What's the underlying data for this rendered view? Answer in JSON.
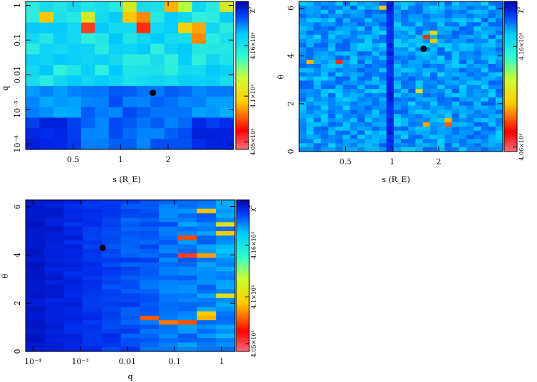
{
  "chart_data": [
    {
      "type": "heatmap",
      "id": "p1",
      "xlabel": "s (R_E)",
      "ylabel": "q",
      "x_scale": "log",
      "y_scale": "log",
      "xlim": [
        0.25,
        5.2
      ],
      "ylim": [
        7e-05,
        1.3
      ],
      "x_ticks": [
        {
          "v": 0.5,
          "label": "0.5"
        },
        {
          "v": 1,
          "label": "1"
        },
        {
          "v": 2,
          "label": "2"
        }
      ],
      "y_ticks": [
        {
          "v": 1,
          "label": "1"
        },
        {
          "v": 0.1,
          "label": "0.1"
        },
        {
          "v": 0.01,
          "label": "0.01"
        },
        {
          "v": 0.001,
          "label": "10⁻³"
        },
        {
          "v": 0.0001,
          "label": "10⁻⁴"
        }
      ],
      "best_fit_marker": {
        "x": 1.6,
        "y": 0.003
      },
      "colorbar": {
        "label": "χ²",
        "tick_labels": [
          "4.16×10⁴",
          "4.1×10⁴",
          "4.05×10⁴"
        ]
      },
      "grid_cols": 15,
      "grid_rows": 14,
      "hotspots": [
        {
          "c": 1,
          "r": 1,
          "v": 0.5
        },
        {
          "c": 4,
          "r": 2,
          "v": 0.05
        },
        {
          "c": 7,
          "r": 1,
          "v": 0.5
        },
        {
          "c": 8,
          "r": 1,
          "v": 0.35
        },
        {
          "c": 8,
          "r": 2,
          "v": 0.1
        },
        {
          "c": 10,
          "r": 0,
          "v": 0.45
        },
        {
          "c": 11,
          "r": 0,
          "v": 1.0
        },
        {
          "c": 12,
          "r": 2,
          "v": 0.42
        },
        {
          "c": 12,
          "r": 3,
          "v": 0.35
        },
        {
          "c": 11,
          "r": 2,
          "v": 0.62
        },
        {
          "c": 7,
          "r": 0,
          "v": 0.8
        },
        {
          "c": 4,
          "r": 1,
          "v": 0.8
        },
        {
          "c": 14,
          "r": 0,
          "v": 0.8
        }
      ]
    },
    {
      "type": "heatmap",
      "id": "p2",
      "xlabel": "s (R_E)",
      "ylabel": "θ",
      "x_scale": "log",
      "y_scale": "linear",
      "xlim": [
        0.25,
        5.2
      ],
      "ylim": [
        0,
        6.283
      ],
      "x_ticks": [
        {
          "v": 0.5,
          "label": "0.5"
        },
        {
          "v": 1,
          "label": "1"
        },
        {
          "v": 2,
          "label": "2"
        }
      ],
      "y_ticks": [
        {
          "v": 0,
          "label": "0"
        },
        {
          "v": 2,
          "label": "2"
        },
        {
          "v": 4,
          "label": "4"
        },
        {
          "v": 6,
          "label": "6"
        }
      ],
      "best_fit_marker": {
        "x": 1.6,
        "y": 4.3
      },
      "colorbar": {
        "label": "χ²",
        "tick_labels": [
          "4.16×10⁴",
          "4.06×10⁴"
        ]
      },
      "grid_cols": 28,
      "grid_rows": 36,
      "hotspots": [
        {
          "c": 1,
          "r": 14,
          "v": 0.45
        },
        {
          "c": 5,
          "r": 14,
          "v": 0.1
        },
        {
          "c": 11,
          "r": 1,
          "v": 0.5
        },
        {
          "c": 17,
          "r": 8,
          "v": 0.1
        },
        {
          "c": 17,
          "r": 29,
          "v": 0.42
        },
        {
          "c": 18,
          "r": 9,
          "v": 0.5
        },
        {
          "c": 18,
          "r": 7,
          "v": 0.6
        },
        {
          "c": 20,
          "r": 28,
          "v": 0.45
        },
        {
          "c": 20,
          "r": 29,
          "v": 0.25
        },
        {
          "c": 16,
          "r": 21,
          "v": 0.7
        }
      ]
    },
    {
      "type": "heatmap",
      "id": "p3",
      "xlabel": "q",
      "ylabel": "θ",
      "x_scale": "log",
      "y_scale": "linear",
      "xlim": [
        7e-05,
        1.9
      ],
      "ylim": [
        0,
        6.283
      ],
      "x_ticks": [
        {
          "v": 0.0001,
          "label": "10⁻⁴"
        },
        {
          "v": 0.001,
          "label": "10⁻³"
        },
        {
          "v": 0.01,
          "label": "0.01"
        },
        {
          "v": 0.1,
          "label": "0.1"
        },
        {
          "v": 1,
          "label": "1"
        }
      ],
      "y_ticks": [
        {
          "v": 0,
          "label": "0"
        },
        {
          "v": 2,
          "label": "2"
        },
        {
          "v": 4,
          "label": "4"
        },
        {
          "v": 6,
          "label": "6"
        }
      ],
      "best_fit_marker": {
        "x": 0.003,
        "y": 4.3
      },
      "colorbar": {
        "label": "χ²",
        "tick_labels": [
          "4.16×10⁴",
          "4.1×10⁴",
          "4.05×10⁴"
        ]
      },
      "grid_cols": 11,
      "grid_rows": 34,
      "hotspots": [
        {
          "c": 9,
          "r": 2,
          "v": 0.5
        },
        {
          "c": 8,
          "r": 8,
          "v": 0.2
        },
        {
          "c": 8,
          "r": 12,
          "v": 0.05
        },
        {
          "c": 9,
          "r": 12,
          "v": 0.4
        },
        {
          "c": 10,
          "r": 5,
          "v": 0.7
        },
        {
          "c": 10,
          "r": 7,
          "v": 0.55
        },
        {
          "c": 10,
          "r": 21,
          "v": 0.7
        },
        {
          "c": 6,
          "r": 26,
          "v": 0.25
        },
        {
          "c": 7,
          "r": 27,
          "v": 0.3
        },
        {
          "c": 8,
          "r": 27,
          "v": 0.22
        },
        {
          "c": 9,
          "r": 26,
          "v": 0.45
        },
        {
          "c": 9,
          "r": 25,
          "v": 0.55
        }
      ]
    }
  ]
}
